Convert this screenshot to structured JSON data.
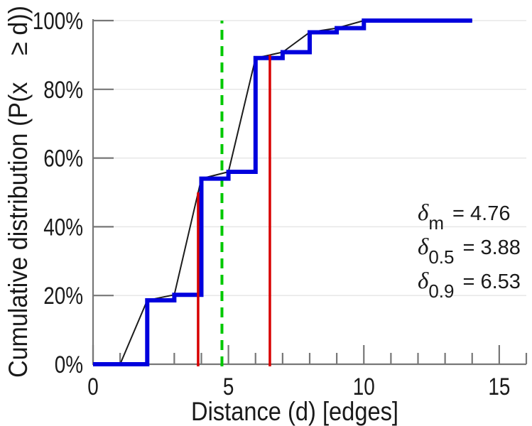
{
  "chart_data": {
    "type": "line",
    "title": "",
    "xlabel": "Distance (d) [edges]",
    "ylabel": "Cumulative distribution (P(x    ≥ d))",
    "xlim": [
      0,
      16
    ],
    "ylim_percent": [
      0,
      100
    ],
    "grid": "horizontal-only",
    "x_axis": {
      "major_ticks": [
        {
          "value": 0,
          "label": "0"
        },
        {
          "value": 5,
          "label": "5"
        },
        {
          "value": 10,
          "label": "10"
        },
        {
          "value": 15,
          "label": "15"
        }
      ],
      "minor_ticks": [
        1,
        2,
        3,
        4,
        6,
        7,
        8,
        9,
        11,
        12,
        13,
        14,
        16
      ]
    },
    "y_axis": {
      "ticks": [
        {
          "value": 0,
          "label": "0%"
        },
        {
          "value": 20,
          "label": "20%"
        },
        {
          "value": 40,
          "label": "40%"
        },
        {
          "value": 60,
          "label": "60%"
        },
        {
          "value": 80,
          "label": "80%"
        },
        {
          "value": 100,
          "label": "100%"
        }
      ]
    },
    "series": [
      {
        "name": "empirical-cdf-staircase",
        "type": "step",
        "color": "#0000dd",
        "start": {
          "x": 0,
          "y": 0
        },
        "jumps": [
          [
            2,
            18.6
          ],
          [
            3,
            20.2
          ],
          [
            4,
            54.0
          ],
          [
            5,
            56.0
          ],
          [
            6,
            89.1
          ],
          [
            7,
            90.8
          ],
          [
            8,
            96.6
          ],
          [
            9,
            97.8
          ],
          [
            10,
            100
          ]
        ],
        "end_x": 14
      },
      {
        "name": "linear-interpolation",
        "type": "line",
        "color": "#1c1c1c",
        "points": [
          [
            1,
            0
          ],
          [
            2,
            18.6
          ],
          [
            3,
            20.2
          ],
          [
            4,
            54.0
          ],
          [
            5,
            56.0
          ],
          [
            6,
            89.1
          ],
          [
            7,
            90.8
          ],
          [
            8,
            96.6
          ],
          [
            9,
            97.8
          ],
          [
            10,
            100
          ],
          [
            14,
            100
          ]
        ]
      }
    ],
    "reference_lines": [
      {
        "name": "mean-distance",
        "x": 4.76,
        "y_from": 0,
        "y_to": 100,
        "style": "dashed",
        "color": "#00c800"
      },
      {
        "name": "median-50th-percentile",
        "x": 3.88,
        "y_from": 0,
        "y_to": 50,
        "style": "solid",
        "color": "#d80000"
      },
      {
        "name": "90th-percentile",
        "x": 6.53,
        "y_from": 0,
        "y_to": 90,
        "style": "solid",
        "color": "#d80000"
      }
    ],
    "annotations": [
      {
        "symbol": "δ",
        "sub": "m",
        "eq": "= 4.76"
      },
      {
        "symbol": "δ",
        "sub": "0.5",
        "eq": "= 3.88"
      },
      {
        "symbol": "δ",
        "sub": "0.9",
        "eq": "= 6.53"
      }
    ]
  }
}
